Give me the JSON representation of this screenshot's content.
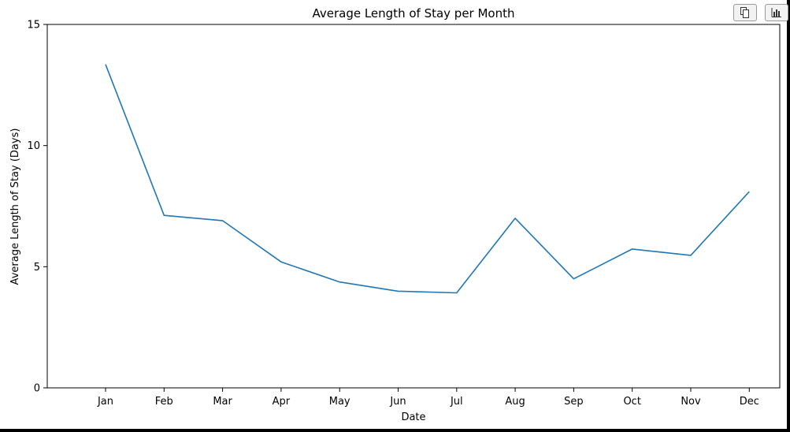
{
  "toolbar": {
    "copy_icon": "copy-icon",
    "chart_icon": "bar-chart-icon"
  },
  "chart_data": {
    "type": "line",
    "title": "Average Length of Stay per Month",
    "xlabel": "Date",
    "ylabel": "Average Length of Stay (Days)",
    "categories": [
      "Jan",
      "Feb",
      "Mar",
      "Apr",
      "May",
      "Jun",
      "Jul",
      "Aug",
      "Sep",
      "Oct",
      "Nov",
      "Dec"
    ],
    "series": [
      {
        "color": "#1f77b4",
        "values": [
          13.35,
          7.12,
          6.9,
          5.2,
          4.37,
          3.99,
          3.92,
          7.0,
          4.5,
          5.73,
          5.47,
          8.1
        ]
      }
    ],
    "yticks": [
      0,
      5,
      10,
      15
    ],
    "ytick_labels": [
      "0",
      "5",
      "10",
      "15"
    ],
    "ylim": [
      0,
      15
    ],
    "grid": false,
    "legend": false
  }
}
